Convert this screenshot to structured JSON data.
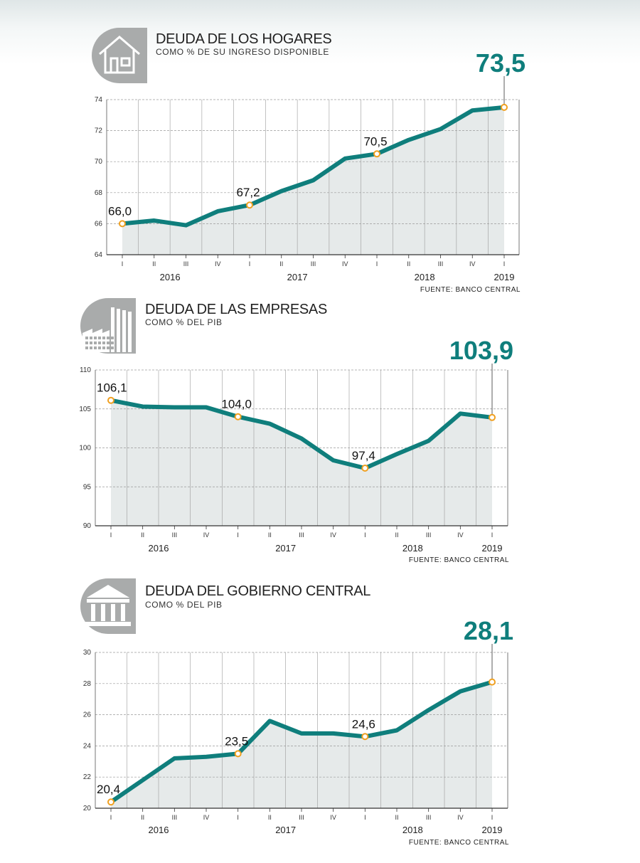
{
  "colors": {
    "line": "#0f7e7c",
    "area": "#e6eaea",
    "marker_fill": "#ffffff",
    "marker_stroke": "#f0a020",
    "icon_bg": "#a9abab",
    "grid": "#9a9a9a"
  },
  "panels": [
    {
      "icon": "house-icon",
      "title": "DEUDA DE LOS HOGARES",
      "subtitle": "COMO % DE SU INGRESO DISPONIBLE",
      "highlight": "73,5",
      "source": "FUENTE: BANCO CENTRAL"
    },
    {
      "icon": "factory-icon",
      "title": "DEUDA DE LAS EMPRESAS",
      "subtitle": "COMO % DEL PIB",
      "highlight": "103,9",
      "source": "FUENTE: BANCO CENTRAL"
    },
    {
      "icon": "government-building-icon",
      "title": "DEUDA DEL GOBIERNO CENTRAL",
      "subtitle": "COMO % DEL PIB",
      "highlight": "28,1",
      "source": "FUENTE: BANCO CENTRAL"
    }
  ],
  "chart_data": [
    {
      "type": "area",
      "title": "DEUDA DE LOS HOGARES",
      "subtitle": "COMO % DE SU INGRESO DISPONIBLE",
      "x_quarters": [
        "I",
        "II",
        "III",
        "IV",
        "I",
        "II",
        "III",
        "IV",
        "I",
        "II",
        "III",
        "IV",
        "I"
      ],
      "x_years": [
        {
          "label": "2016",
          "at": 1.5
        },
        {
          "label": "2017",
          "at": 5.5
        },
        {
          "label": "2018",
          "at": 9.5
        },
        {
          "label": "2019",
          "at": 12
        }
      ],
      "values": [
        66.0,
        66.2,
        65.9,
        66.8,
        67.2,
        68.1,
        68.8,
        70.2,
        70.5,
        71.4,
        72.1,
        73.3,
        73.5
      ],
      "ylim": [
        64,
        74
      ],
      "yticks": [
        64,
        66,
        68,
        70,
        72,
        74
      ],
      "grid": true,
      "point_labels": [
        {
          "index": 0,
          "text": "66,0"
        },
        {
          "index": 4,
          "text": "67,2"
        },
        {
          "index": 8,
          "text": "70,5"
        }
      ],
      "highlight": {
        "index": 12,
        "text": "73,5"
      }
    },
    {
      "type": "area",
      "title": "DEUDA DE LAS EMPRESAS",
      "subtitle": "COMO % DEL PIB",
      "x_quarters": [
        "I",
        "II",
        "III",
        "IV",
        "I",
        "II",
        "III",
        "IV",
        "I",
        "II",
        "III",
        "IV",
        "I"
      ],
      "x_years": [
        {
          "label": "2016",
          "at": 1.5
        },
        {
          "label": "2017",
          "at": 5.5
        },
        {
          "label": "2018",
          "at": 9.5
        },
        {
          "label": "2019",
          "at": 12
        }
      ],
      "values": [
        106.1,
        105.3,
        105.2,
        105.2,
        104.0,
        103.1,
        101.2,
        98.4,
        97.4,
        99.2,
        100.9,
        104.4,
        103.9
      ],
      "ylim": [
        90,
        110
      ],
      "yticks": [
        90,
        95,
        100,
        105,
        110
      ],
      "grid": true,
      "point_labels": [
        {
          "index": 0,
          "text": "106,1"
        },
        {
          "index": 4,
          "text": "104,0"
        },
        {
          "index": 8,
          "text": "97,4"
        }
      ],
      "highlight": {
        "index": 12,
        "text": "103,9"
      }
    },
    {
      "type": "area",
      "title": "DEUDA DEL GOBIERNO CENTRAL",
      "subtitle": "COMO % DEL PIB",
      "x_quarters": [
        "I",
        "II",
        "III",
        "IV",
        "I",
        "II",
        "III",
        "IV",
        "I",
        "II",
        "III",
        "IV",
        "I"
      ],
      "x_years": [
        {
          "label": "2016",
          "at": 1.5
        },
        {
          "label": "2017",
          "at": 5.5
        },
        {
          "label": "2018",
          "at": 9.5
        },
        {
          "label": "2019",
          "at": 12
        }
      ],
      "values": [
        20.4,
        21.8,
        23.2,
        23.3,
        23.5,
        25.6,
        24.8,
        24.8,
        24.6,
        25.0,
        26.3,
        27.5,
        28.1
      ],
      "ylim": [
        20,
        30
      ],
      "yticks": [
        20,
        22,
        24,
        26,
        28,
        30
      ],
      "grid": true,
      "point_labels": [
        {
          "index": 0,
          "text": "20,4"
        },
        {
          "index": 4,
          "text": "23,5"
        },
        {
          "index": 8,
          "text": "24,6"
        }
      ],
      "highlight": {
        "index": 12,
        "text": "28,1"
      }
    }
  ]
}
